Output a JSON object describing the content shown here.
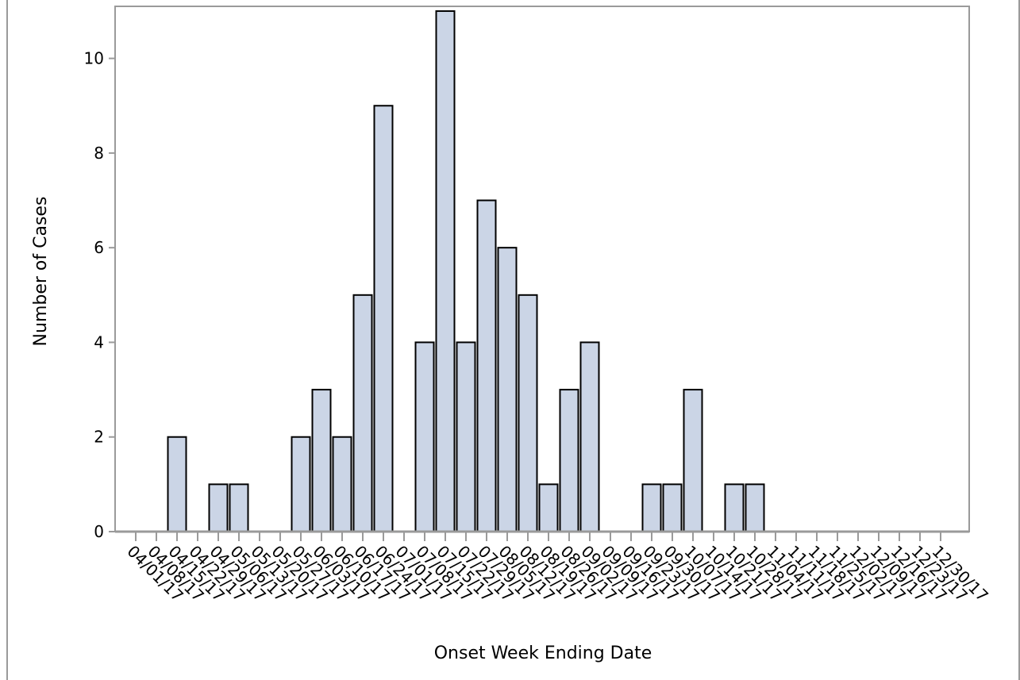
{
  "chart_data": {
    "type": "bar",
    "xlabel": "Onset Week Ending Date",
    "ylabel": "Number of Cases",
    "ylim": [
      0,
      11.1
    ],
    "yticks": [
      0,
      2,
      4,
      6,
      8,
      10
    ],
    "grid": false,
    "categories": [
      "04/01/17",
      "04/08/17",
      "04/15/17",
      "04/22/17",
      "04/29/17",
      "05/06/17",
      "05/13/17",
      "05/20/17",
      "05/27/17",
      "06/03/17",
      "06/10/17",
      "06/17/17",
      "06/24/17",
      "07/01/17",
      "07/08/17",
      "07/15/17",
      "07/22/17",
      "07/29/17",
      "08/05/17",
      "08/12/17",
      "08/19/17",
      "08/26/17",
      "09/02/17",
      "09/09/17",
      "09/16/17",
      "09/23/17",
      "09/30/17",
      "10/07/17",
      "10/14/17",
      "10/21/17",
      "10/28/17",
      "11/04/17",
      "11/11/17",
      "11/18/17",
      "11/25/17",
      "12/02/17",
      "12/09/17",
      "12/16/17",
      "12/23/17",
      "12/30/17"
    ],
    "values": [
      0,
      0,
      2,
      0,
      1,
      1,
      0,
      0,
      2,
      3,
      2,
      5,
      9,
      0,
      4,
      11,
      4,
      7,
      6,
      5,
      1,
      3,
      4,
      0,
      0,
      1,
      1,
      3,
      0,
      1,
      1,
      0,
      0,
      0,
      0,
      0,
      0,
      0,
      0,
      0
    ],
    "colors": {
      "bar_fill": "#cbd5e6",
      "bar_stroke": "#000000",
      "axis": "#9a9a9a",
      "frame": "#9a9a9a"
    }
  }
}
